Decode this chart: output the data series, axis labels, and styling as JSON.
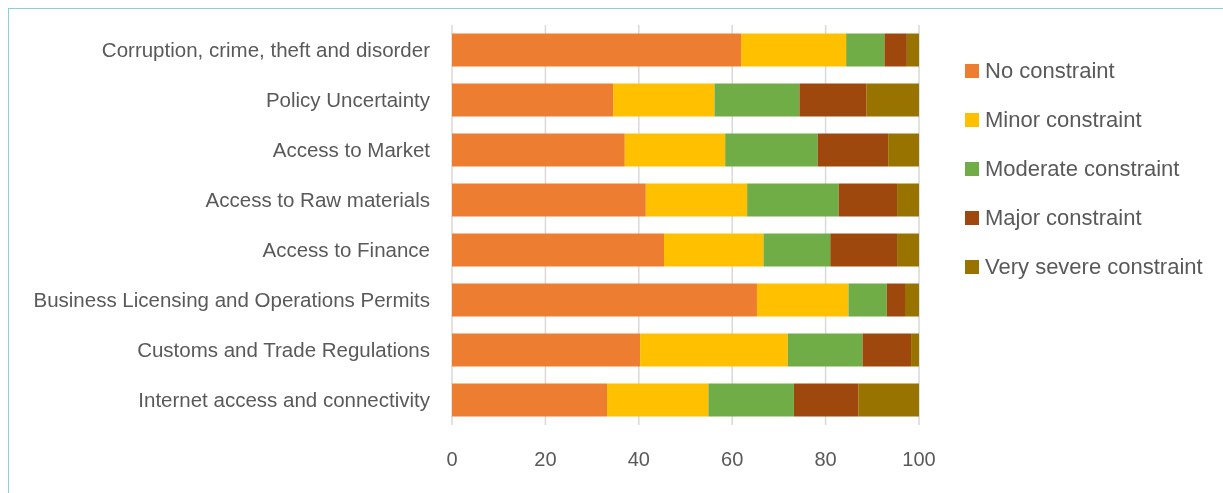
{
  "chart_data": {
    "type": "bar",
    "orientation": "horizontal",
    "stacked": true,
    "categories": [
      "Corruption, crime, theft and disorder",
      "Policy Uncertainty",
      "Access to Market",
      "Access to Raw materials",
      "Access to Finance",
      "Business Licensing and Operations Permits",
      "Customs and Trade Regulations",
      "Internet access and connectivity"
    ],
    "series": [
      {
        "name": "No constraint",
        "color": "#ed7d31",
        "values": [
          61.9,
          34.5,
          37.0,
          41.5,
          45.4,
          65.3,
          40.3,
          33.2
        ]
      },
      {
        "name": "Minor constraint",
        "color": "#ffc000",
        "values": [
          22.5,
          21.7,
          21.5,
          21.7,
          21.3,
          19.6,
          31.6,
          21.7
        ]
      },
      {
        "name": "Moderate constraint",
        "color": "#70ad47",
        "values": [
          8.2,
          18.2,
          19.8,
          19.6,
          14.3,
          8.2,
          16.0,
          18.3
        ]
      },
      {
        "name": "Major constraint",
        "color": "#9e480e",
        "values": [
          4.8,
          14.3,
          15.1,
          12.5,
          14.3,
          3.9,
          10.4,
          13.8
        ]
      },
      {
        "name": "Very severe constraint",
        "color": "#997300",
        "values": [
          2.6,
          11.3,
          6.6,
          4.7,
          4.7,
          3.0,
          1.7,
          13.0
        ]
      }
    ],
    "xlim": [
      0,
      100
    ],
    "xticks": [
      0,
      20,
      40,
      60,
      80,
      100
    ],
    "grid": "x",
    "legend": "right"
  }
}
